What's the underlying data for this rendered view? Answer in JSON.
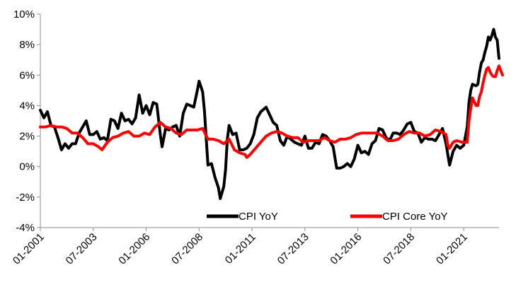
{
  "chart_data": {
    "type": "line",
    "title": "",
    "xlabel": "",
    "ylabel": "",
    "x_tick_labels": [
      "01-2001",
      "07-2003",
      "01-2006",
      "07-2008",
      "01-2011",
      "07-2013",
      "01-2016",
      "07-2018",
      "01-2021"
    ],
    "y_tick_labels": [
      "10%",
      "8%",
      "6%",
      "4%",
      "2%",
      "0%",
      "-2%",
      "-4%"
    ],
    "ylim": [
      -4,
      10
    ],
    "xlim": [
      "2001-01",
      "2022-09"
    ],
    "grid": false,
    "legend_position": "bottom-center, inside plot",
    "series": [
      {
        "name": "CPI YoY",
        "color": "#000000",
        "points": [
          [
            "2001-01",
            3.7
          ],
          [
            "2001-03",
            3.2
          ],
          [
            "2001-05",
            3.6
          ],
          [
            "2001-07",
            2.7
          ],
          [
            "2001-09",
            2.6
          ],
          [
            "2001-11",
            1.9
          ],
          [
            "2002-01",
            1.1
          ],
          [
            "2002-03",
            1.5
          ],
          [
            "2002-05",
            1.2
          ],
          [
            "2002-07",
            1.5
          ],
          [
            "2002-09",
            1.5
          ],
          [
            "2002-11",
            2.2
          ],
          [
            "2003-01",
            2.6
          ],
          [
            "2003-03",
            3.0
          ],
          [
            "2003-05",
            2.1
          ],
          [
            "2003-07",
            2.1
          ],
          [
            "2003-09",
            2.3
          ],
          [
            "2003-11",
            1.8
          ],
          [
            "2004-01",
            1.9
          ],
          [
            "2004-03",
            1.7
          ],
          [
            "2004-05",
            3.1
          ],
          [
            "2004-07",
            3.0
          ],
          [
            "2004-09",
            2.5
          ],
          [
            "2004-11",
            3.5
          ],
          [
            "2005-01",
            3.0
          ],
          [
            "2005-03",
            3.1
          ],
          [
            "2005-05",
            2.8
          ],
          [
            "2005-07",
            3.2
          ],
          [
            "2005-09",
            4.7
          ],
          [
            "2005-11",
            3.5
          ],
          [
            "2006-01",
            4.0
          ],
          [
            "2006-03",
            3.4
          ],
          [
            "2006-05",
            4.2
          ],
          [
            "2006-07",
            4.1
          ],
          [
            "2006-09",
            2.1
          ],
          [
            "2006-10",
            1.3
          ],
          [
            "2006-12",
            2.5
          ],
          [
            "2007-02",
            2.4
          ],
          [
            "2007-04",
            2.6
          ],
          [
            "2007-06",
            2.7
          ],
          [
            "2007-08",
            2.0
          ],
          [
            "2007-10",
            3.5
          ],
          [
            "2007-12",
            4.1
          ],
          [
            "2008-02",
            4.0
          ],
          [
            "2008-04",
            3.9
          ],
          [
            "2008-06",
            5.0
          ],
          [
            "2008-07",
            5.6
          ],
          [
            "2008-09",
            4.9
          ],
          [
            "2008-10",
            3.7
          ],
          [
            "2008-12",
            0.1
          ],
          [
            "2009-02",
            0.2
          ],
          [
            "2009-04",
            -0.7
          ],
          [
            "2009-06",
            -1.4
          ],
          [
            "2009-07",
            -2.1
          ],
          [
            "2009-09",
            -1.3
          ],
          [
            "2009-10",
            -0.2
          ],
          [
            "2009-11",
            1.8
          ],
          [
            "2009-12",
            2.7
          ],
          [
            "2010-02",
            2.1
          ],
          [
            "2010-04",
            2.2
          ],
          [
            "2010-06",
            1.1
          ],
          [
            "2010-08",
            1.1
          ],
          [
            "2010-10",
            1.2
          ],
          [
            "2010-12",
            1.5
          ],
          [
            "2011-02",
            2.1
          ],
          [
            "2011-04",
            3.2
          ],
          [
            "2011-06",
            3.6
          ],
          [
            "2011-09",
            3.9
          ],
          [
            "2011-11",
            3.4
          ],
          [
            "2012-01",
            2.9
          ],
          [
            "2012-03",
            2.7
          ],
          [
            "2012-05",
            1.7
          ],
          [
            "2012-07",
            1.4
          ],
          [
            "2012-09",
            2.0
          ],
          [
            "2012-11",
            1.8
          ],
          [
            "2013-01",
            1.6
          ],
          [
            "2013-03",
            1.5
          ],
          [
            "2013-05",
            1.4
          ],
          [
            "2013-07",
            2.0
          ],
          [
            "2013-09",
            1.2
          ],
          [
            "2013-11",
            1.2
          ],
          [
            "2014-01",
            1.6
          ],
          [
            "2014-03",
            1.5
          ],
          [
            "2014-05",
            2.1
          ],
          [
            "2014-07",
            2.0
          ],
          [
            "2014-09",
            1.7
          ],
          [
            "2014-11",
            1.3
          ],
          [
            "2015-01",
            -0.1
          ],
          [
            "2015-03",
            -0.1
          ],
          [
            "2015-05",
            0.0
          ],
          [
            "2015-07",
            0.2
          ],
          [
            "2015-09",
            0.0
          ],
          [
            "2015-11",
            0.5
          ],
          [
            "2016-01",
            1.4
          ],
          [
            "2016-03",
            0.9
          ],
          [
            "2016-05",
            1.0
          ],
          [
            "2016-07",
            0.8
          ],
          [
            "2016-09",
            1.5
          ],
          [
            "2016-11",
            1.7
          ],
          [
            "2017-01",
            2.5
          ],
          [
            "2017-03",
            2.4
          ],
          [
            "2017-05",
            1.9
          ],
          [
            "2017-07",
            1.7
          ],
          [
            "2017-09",
            2.2
          ],
          [
            "2017-11",
            2.2
          ],
          [
            "2018-01",
            2.1
          ],
          [
            "2018-03",
            2.4
          ],
          [
            "2018-05",
            2.8
          ],
          [
            "2018-07",
            2.9
          ],
          [
            "2018-09",
            2.3
          ],
          [
            "2018-11",
            2.2
          ],
          [
            "2019-01",
            1.6
          ],
          [
            "2019-03",
            1.9
          ],
          [
            "2019-05",
            1.8
          ],
          [
            "2019-07",
            1.8
          ],
          [
            "2019-09",
            1.7
          ],
          [
            "2019-11",
            2.1
          ],
          [
            "2020-01",
            2.5
          ],
          [
            "2020-03",
            1.5
          ],
          [
            "2020-05",
            0.1
          ],
          [
            "2020-07",
            1.0
          ],
          [
            "2020-09",
            1.4
          ],
          [
            "2020-11",
            1.2
          ],
          [
            "2021-01",
            1.4
          ],
          [
            "2021-03",
            2.6
          ],
          [
            "2021-04",
            4.2
          ],
          [
            "2021-05",
            5.0
          ],
          [
            "2021-06",
            5.4
          ],
          [
            "2021-08",
            5.3
          ],
          [
            "2021-09",
            5.4
          ],
          [
            "2021-10",
            6.2
          ],
          [
            "2021-11",
            6.8
          ],
          [
            "2021-12",
            7.0
          ],
          [
            "2022-01",
            7.5
          ],
          [
            "2022-02",
            7.9
          ],
          [
            "2022-03",
            8.5
          ],
          [
            "2022-04",
            8.3
          ],
          [
            "2022-05",
            8.6
          ],
          [
            "2022-06",
            9.0
          ],
          [
            "2022-07",
            8.5
          ],
          [
            "2022-08",
            8.3
          ],
          [
            "2022-09",
            7.1
          ]
        ]
      },
      {
        "name": "CPI Core YoY",
        "color": "#ff0000",
        "points": [
          [
            "2001-01",
            2.6
          ],
          [
            "2001-04",
            2.6
          ],
          [
            "2001-07",
            2.7
          ],
          [
            "2001-10",
            2.6
          ],
          [
            "2002-01",
            2.6
          ],
          [
            "2002-04",
            2.5
          ],
          [
            "2002-07",
            2.2
          ],
          [
            "2002-10",
            2.2
          ],
          [
            "2003-01",
            1.9
          ],
          [
            "2003-04",
            1.5
          ],
          [
            "2003-07",
            1.5
          ],
          [
            "2003-10",
            1.3
          ],
          [
            "2003-12",
            1.1
          ],
          [
            "2004-03",
            1.6
          ],
          [
            "2004-06",
            1.9
          ],
          [
            "2004-09",
            2.0
          ],
          [
            "2004-12",
            2.2
          ],
          [
            "2005-03",
            2.3
          ],
          [
            "2005-06",
            2.0
          ],
          [
            "2005-09",
            2.0
          ],
          [
            "2005-12",
            2.2
          ],
          [
            "2006-03",
            2.1
          ],
          [
            "2006-06",
            2.6
          ],
          [
            "2006-09",
            2.9
          ],
          [
            "2006-12",
            2.6
          ],
          [
            "2007-03",
            2.5
          ],
          [
            "2007-06",
            2.2
          ],
          [
            "2007-09",
            2.1
          ],
          [
            "2007-12",
            2.4
          ],
          [
            "2008-03",
            2.4
          ],
          [
            "2008-06",
            2.4
          ],
          [
            "2008-09",
            2.5
          ],
          [
            "2008-12",
            1.8
          ],
          [
            "2009-03",
            1.8
          ],
          [
            "2009-06",
            1.7
          ],
          [
            "2009-09",
            1.5
          ],
          [
            "2009-12",
            1.8
          ],
          [
            "2010-03",
            1.1
          ],
          [
            "2010-06",
            0.9
          ],
          [
            "2010-09",
            0.8
          ],
          [
            "2010-10",
            0.6
          ],
          [
            "2010-12",
            0.8
          ],
          [
            "2011-03",
            1.2
          ],
          [
            "2011-06",
            1.6
          ],
          [
            "2011-09",
            2.0
          ],
          [
            "2011-12",
            2.2
          ],
          [
            "2012-03",
            2.3
          ],
          [
            "2012-06",
            2.2
          ],
          [
            "2012-09",
            2.0
          ],
          [
            "2012-12",
            1.9
          ],
          [
            "2013-03",
            1.9
          ],
          [
            "2013-06",
            1.6
          ],
          [
            "2013-09",
            1.7
          ],
          [
            "2013-12",
            1.7
          ],
          [
            "2014-03",
            1.7
          ],
          [
            "2014-06",
            1.9
          ],
          [
            "2014-09",
            1.7
          ],
          [
            "2014-12",
            1.6
          ],
          [
            "2015-03",
            1.8
          ],
          [
            "2015-06",
            1.8
          ],
          [
            "2015-09",
            1.9
          ],
          [
            "2015-12",
            2.1
          ],
          [
            "2016-03",
            2.2
          ],
          [
            "2016-06",
            2.2
          ],
          [
            "2016-09",
            2.2
          ],
          [
            "2016-12",
            2.2
          ],
          [
            "2017-03",
            2.0
          ],
          [
            "2017-06",
            1.7
          ],
          [
            "2017-09",
            1.7
          ],
          [
            "2017-12",
            1.8
          ],
          [
            "2018-03",
            2.1
          ],
          [
            "2018-06",
            2.3
          ],
          [
            "2018-09",
            2.2
          ],
          [
            "2018-12",
            2.2
          ],
          [
            "2019-03",
            2.0
          ],
          [
            "2019-06",
            2.1
          ],
          [
            "2019-09",
            2.4
          ],
          [
            "2019-12",
            2.3
          ],
          [
            "2020-03",
            2.1
          ],
          [
            "2020-04",
            1.4
          ],
          [
            "2020-05",
            1.2
          ],
          [
            "2020-07",
            1.6
          ],
          [
            "2020-09",
            1.7
          ],
          [
            "2020-12",
            1.6
          ],
          [
            "2021-03",
            1.6
          ],
          [
            "2021-04",
            3.0
          ],
          [
            "2021-05",
            3.8
          ],
          [
            "2021-06",
            4.5
          ],
          [
            "2021-08",
            4.0
          ],
          [
            "2021-09",
            4.0
          ],
          [
            "2021-10",
            4.6
          ],
          [
            "2021-11",
            4.9
          ],
          [
            "2021-12",
            5.5
          ],
          [
            "2022-01",
            6.0
          ],
          [
            "2022-02",
            6.4
          ],
          [
            "2022-03",
            6.5
          ],
          [
            "2022-04",
            6.2
          ],
          [
            "2022-05",
            6.0
          ],
          [
            "2022-06",
            5.9
          ],
          [
            "2022-07",
            5.9
          ],
          [
            "2022-08",
            6.3
          ],
          [
            "2022-09",
            6.6
          ],
          [
            "2022-10",
            6.3
          ],
          [
            "2022-11",
            6.0
          ]
        ]
      }
    ]
  }
}
